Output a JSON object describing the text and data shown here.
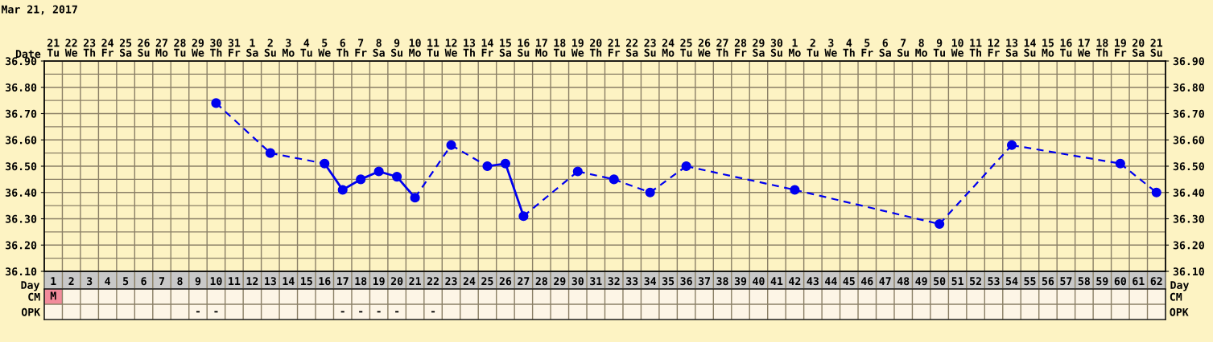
{
  "chart_data": [
    {
      "type": "line",
      "title": "Mar 21, 2017",
      "xlabel": "Day",
      "x2label": "Date",
      "xlim": [
        0.5,
        62.5
      ],
      "ylim": [
        36.1,
        36.9
      ],
      "y2lim": [
        36.1,
        36.9
      ],
      "xticks": [
        1,
        2,
        3,
        4,
        5,
        6,
        7,
        8,
        9,
        10,
        11,
        12,
        13,
        14,
        15,
        16,
        17,
        18,
        19,
        20,
        21,
        22,
        23,
        24,
        25,
        26,
        27,
        28,
        29,
        30,
        31,
        32,
        33,
        34,
        35,
        36,
        37,
        38,
        39,
        40,
        41,
        42,
        43,
        44,
        45,
        46,
        47,
        48,
        49,
        50,
        51,
        52,
        53,
        54,
        55,
        56,
        57,
        58,
        59,
        60,
        61,
        62
      ],
      "x2lim": [
        "2017-03-20T12:00",
        "2017-05-21T12:00"
      ],
      "x2ticks": [
        {
          "value": "2017-03-21",
          "label": "21\nTu"
        },
        {
          "value": "2017-03-22",
          "label": "22\nWe"
        },
        {
          "value": "2017-03-23",
          "label": "23\nTh"
        },
        {
          "value": "2017-03-24",
          "label": "24\nFr"
        },
        {
          "value": "2017-03-25",
          "label": "25\nSa"
        },
        {
          "value": "2017-03-26",
          "label": "26\nSu"
        },
        {
          "value": "2017-03-27",
          "label": "27\nMo"
        },
        {
          "value": "2017-03-28",
          "label": "28\nTu"
        },
        {
          "value": "2017-03-29",
          "label": "29\nWe"
        },
        {
          "value": "2017-03-30",
          "label": "30\nTh"
        },
        {
          "value": "2017-03-31",
          "label": "31\nFr"
        },
        {
          "value": "2017-04-01",
          "label": "1\nSa"
        },
        {
          "value": "2017-04-02",
          "label": "2\nSu"
        },
        {
          "value": "2017-04-03",
          "label": "3\nMo"
        },
        {
          "value": "2017-04-04",
          "label": "4\nTu"
        },
        {
          "value": "2017-04-05",
          "label": "5\nWe"
        },
        {
          "value": "2017-04-06",
          "label": "6\nTh"
        },
        {
          "value": "2017-04-07",
          "label": "7\nFr"
        },
        {
          "value": "2017-04-08",
          "label": "8\nSa"
        },
        {
          "value": "2017-04-09",
          "label": "9\nSu"
        },
        {
          "value": "2017-04-10",
          "label": "10\nMo"
        },
        {
          "value": "2017-04-11",
          "label": "11\nTu"
        },
        {
          "value": "2017-04-12",
          "label": "12\nWe"
        },
        {
          "value": "2017-04-13",
          "label": "13\nTh"
        },
        {
          "value": "2017-04-14",
          "label": "14\nFr"
        },
        {
          "value": "2017-04-15",
          "label": "15\nSa"
        },
        {
          "value": "2017-04-16",
          "label": "16\nSu"
        },
        {
          "value": "2017-04-17",
          "label": "17\nMo"
        },
        {
          "value": "2017-04-18",
          "label": "18\nTu"
        },
        {
          "value": "2017-04-19",
          "label": "19\nWe"
        },
        {
          "value": "2017-04-20",
          "label": "20\nTh"
        },
        {
          "value": "2017-04-21",
          "label": "21\nFr"
        },
        {
          "value": "2017-04-22",
          "label": "22\nSa"
        },
        {
          "value": "2017-04-23",
          "label": "23\nSu"
        },
        {
          "value": "2017-04-24",
          "label": "24\nMo"
        },
        {
          "value": "2017-04-25",
          "label": "25\nTu"
        },
        {
          "value": "2017-04-26",
          "label": "26\nWe"
        },
        {
          "value": "2017-04-27",
          "label": "27\nTh"
        },
        {
          "value": "2017-04-28",
          "label": "28\nFr"
        },
        {
          "value": "2017-04-29",
          "label": "29\nSa"
        },
        {
          "value": "2017-04-30",
          "label": "30\nSu"
        },
        {
          "value": "2017-05-01",
          "label": "1\nMo"
        },
        {
          "value": "2017-05-02",
          "label": "2\nTu"
        },
        {
          "value": "2017-05-03",
          "label": "3\nWe"
        },
        {
          "value": "2017-05-04",
          "label": "4\nTh"
        },
        {
          "value": "2017-05-05",
          "label": "5\nFr"
        },
        {
          "value": "2017-05-06",
          "label": "6\nSa"
        },
        {
          "value": "2017-05-07",
          "label": "7\nSu"
        },
        {
          "value": "2017-05-08",
          "label": "8\nMo"
        },
        {
          "value": "2017-05-09",
          "label": "9\nTu"
        },
        {
          "value": "2017-05-10",
          "label": "10\nWe"
        },
        {
          "value": "2017-05-11",
          "label": "11\nTh"
        },
        {
          "value": "2017-05-12",
          "label": "12\nFr"
        },
        {
          "value": "2017-05-13",
          "label": "13\nSa"
        },
        {
          "value": "2017-05-14",
          "label": "14\nSu"
        },
        {
          "value": "2017-05-15",
          "label": "15\nMo"
        },
        {
          "value": "2017-05-16",
          "label": "16\nTu"
        },
        {
          "value": "2017-05-17",
          "label": "17\nWe"
        },
        {
          "value": "2017-05-18",
          "label": "18\nTh"
        },
        {
          "value": "2017-05-19",
          "label": "19\nFr"
        },
        {
          "value": "2017-05-20",
          "label": "20\nSa"
        },
        {
          "value": "2017-05-21",
          "label": "21\nSu"
        }
      ],
      "yticks": [
        {
          "value": 36.1,
          "label": "36.10"
        },
        {
          "value": 36.2,
          "label": "36.20"
        },
        {
          "value": 36.3,
          "label": "36.30"
        },
        {
          "value": 36.4,
          "label": "36.40"
        },
        {
          "value": 36.5,
          "label": "36.50"
        },
        {
          "value": 36.6,
          "label": "36.60"
        },
        {
          "value": 36.7,
          "label": "36.70"
        },
        {
          "value": 36.8,
          "label": "36.80"
        },
        {
          "value": 36.9,
          "label": "36.90"
        }
      ],
      "y2ticks": [
        {
          "value": 36.1,
          "label": "36.10"
        },
        {
          "value": 36.2,
          "label": "36.20"
        },
        {
          "value": 36.3,
          "label": "36.30"
        },
        {
          "value": 36.4,
          "label": "36.40"
        },
        {
          "value": 36.5,
          "label": "36.50"
        },
        {
          "value": 36.6,
          "label": "36.60"
        },
        {
          "value": 36.7,
          "label": "36.70"
        },
        {
          "value": 36.8,
          "label": "36.80"
        },
        {
          "value": 36.9,
          "label": "36.90"
        }
      ],
      "grid": true,
      "marker": "circle",
      "line_style": "dashed",
      "series": [
        {
          "color": "#0000ee",
          "x": [
            10,
            13,
            16,
            17,
            18,
            19,
            20,
            21,
            23,
            25,
            26,
            27,
            30,
            32,
            34,
            36,
            42,
            50,
            54,
            60,
            62
          ],
          "values": [
            36.74,
            36.55,
            36.51,
            36.41,
            36.45,
            36.48,
            36.46,
            36.38,
            36.58,
            36.5,
            36.51,
            36.31,
            36.48,
            36.45,
            36.4,
            36.5,
            36.41,
            36.28,
            36.58,
            36.51,
            36.4
          ]
        }
      ]
    },
    {
      "type": "heatmap",
      "categories": [
        null,
        null,
        null,
        null,
        null,
        null,
        null,
        null,
        null,
        null,
        null,
        null,
        null,
        null,
        null,
        null,
        null,
        null,
        null,
        null,
        null,
        null,
        null,
        null,
        null,
        null,
        null,
        null,
        null,
        null,
        null,
        null,
        null,
        null,
        null,
        null,
        null,
        null,
        null,
        null,
        null,
        null,
        null,
        null,
        null,
        null,
        null,
        null,
        null,
        null,
        null,
        null,
        null,
        null,
        null,
        null,
        null,
        null,
        null,
        null,
        null,
        null
      ],
      "y_categories": [
        "CM",
        "OPK"
      ],
      "y2_categories": [
        "CM",
        "OPK"
      ],
      "cells": [
        [
          null,
          null,
          null,
          null,
          null,
          null,
          null,
          null,
          null,
          null,
          null,
          null,
          null,
          null,
          null,
          null,
          null,
          null,
          null,
          null,
          null,
          null,
          null,
          null,
          null,
          null,
          null,
          null,
          null,
          null,
          null,
          null,
          null,
          null,
          null,
          null,
          null,
          null,
          null,
          null,
          null,
          null,
          null,
          null,
          null,
          null,
          null,
          null,
          null,
          null,
          null,
          null,
          null,
          null,
          null,
          null,
          null,
          null,
          null,
          null,
          null,
          null
        ],
        [
          null,
          null,
          null,
          null,
          null,
          null,
          null,
          null,
          null,
          null,
          null,
          null,
          null,
          null,
          null,
          null,
          null,
          null,
          null,
          null,
          null,
          null,
          null,
          null,
          null,
          null,
          null,
          null,
          null,
          null,
          null,
          null,
          null,
          null,
          null,
          null,
          null,
          null,
          null,
          null,
          null,
          null,
          null,
          null,
          null,
          null,
          null,
          null,
          null,
          null,
          null,
          null,
          null,
          null,
          null,
          null,
          null,
          null,
          null,
          null,
          null,
          null
        ]
      ],
      "cell_labels": [
        [
          "M",
          null,
          null,
          null,
          null,
          null,
          null,
          null,
          null,
          null,
          null,
          null,
          null,
          null,
          null,
          null,
          null,
          null,
          null,
          null,
          null,
          null,
          null,
          null,
          null,
          null,
          null,
          null,
          null,
          null,
          null,
          null,
          null,
          null,
          null,
          null,
          null,
          null,
          null,
          null,
          null,
          null,
          null,
          null,
          null,
          null,
          null,
          null,
          null,
          null,
          null,
          null,
          null,
          null,
          null,
          null,
          null,
          null,
          null,
          null,
          null,
          null
        ],
        [
          null,
          null,
          null,
          null,
          null,
          null,
          null,
          null,
          "-",
          "-",
          null,
          null,
          null,
          null,
          null,
          null,
          "-",
          "-",
          "-",
          "-",
          null,
          "-",
          null,
          null,
          null,
          null,
          null,
          null,
          null,
          null,
          null,
          null,
          null,
          null,
          null,
          null,
          null,
          null,
          null,
          null,
          null,
          null,
          null,
          null,
          null,
          null,
          null,
          null,
          null,
          null,
          null,
          null,
          null,
          null,
          null,
          null,
          null,
          null,
          null,
          null,
          null,
          null
        ]
      ]
    }
  ]
}
